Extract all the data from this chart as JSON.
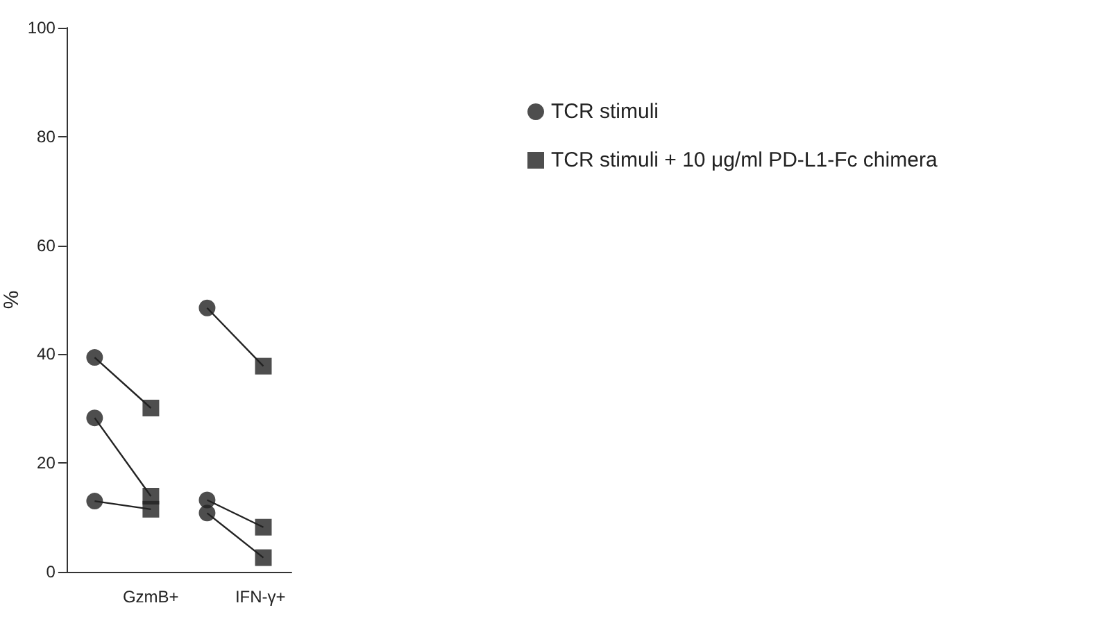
{
  "chart_data": {
    "type": "scatter",
    "ylabel": "%",
    "categories": [
      null,
      null,
      null,
      null
    ],
    "annotations": [
      "GzmB+",
      "IFN-γ+"
    ],
    "ylim": [
      0,
      100
    ],
    "yticks": [
      0,
      20,
      40,
      60,
      80,
      100
    ],
    "grid": false,
    "legend": "right",
    "series": [
      {
        "name": "TCR stimuli",
        "type": "scatter",
        "marker": "circle",
        "color": "#222222",
        "values": [
          39.4,
          null,
          48.5,
          null
        ]
      },
      {
        "type": "scatter",
        "marker": "circle",
        "color": "#222222",
        "values": [
          28.3,
          null,
          13.2,
          null
        ]
      },
      {
        "type": "scatter",
        "marker": "circle",
        "color": "#222222",
        "values": [
          13,
          null,
          10.8,
          null
        ]
      },
      {
        "name": "TCR stimuli + 10 μg/ml PD-L1-Fc chimera",
        "type": "scatter",
        "marker": "square",
        "color": "#222222",
        "values": [
          null,
          30.1,
          null,
          37.8
        ]
      },
      {
        "type": "scatter",
        "marker": "square",
        "color": "#222222",
        "values": [
          null,
          13.9,
          null,
          8.2
        ]
      },
      {
        "type": "scatter",
        "marker": "square",
        "color": "#222222",
        "values": [
          null,
          11.5,
          null,
          2.6
        ]
      },
      {
        "type": "line",
        "marker": "none",
        "color": "#222222",
        "values": [
          39.4,
          30.1,
          null,
          null
        ]
      },
      {
        "type": "line",
        "marker": "none",
        "color": "#222222",
        "values": [
          28.3,
          13.9,
          null,
          null
        ]
      },
      {
        "type": "line",
        "marker": "none",
        "color": "#222222",
        "values": [
          13,
          11.5,
          null,
          null
        ]
      },
      {
        "type": "line",
        "marker": "none",
        "color": "#222222",
        "values": [
          null,
          null,
          48.5,
          37.8
        ]
      },
      {
        "type": "line",
        "marker": "none",
        "color": "#222222",
        "values": [
          null,
          null,
          13.2,
          8.2
        ]
      },
      {
        "type": "line",
        "marker": "none",
        "color": "#222222",
        "values": [
          null,
          null,
          10.8,
          2.6
        ]
      }
    ]
  }
}
